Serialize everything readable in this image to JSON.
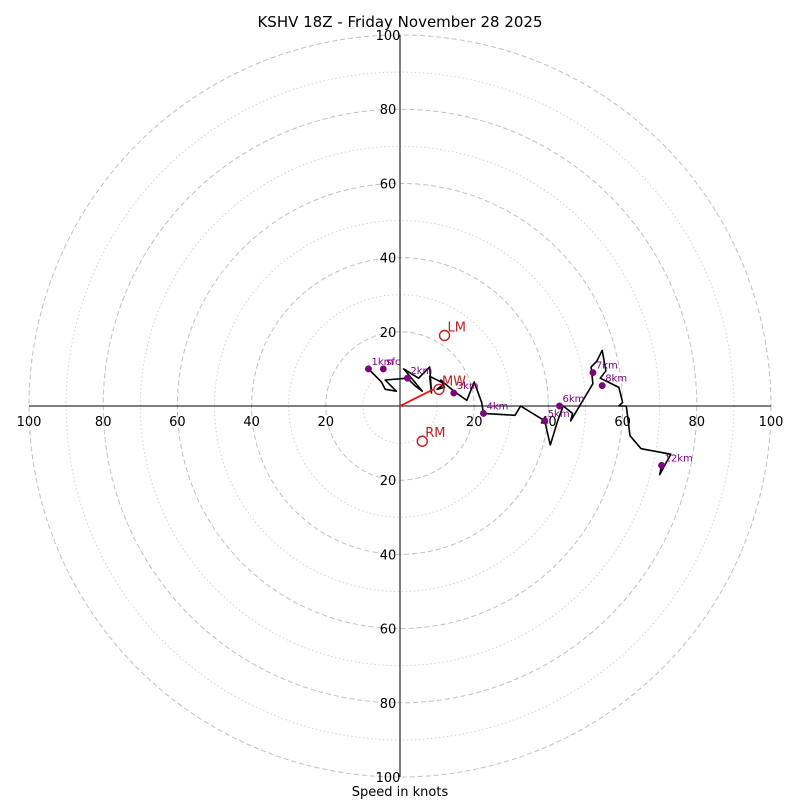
{
  "chart_data": {
    "type": "hodograph",
    "title": "KSHV 18Z - Friday November 28 2025",
    "xlabel": "Speed in knots",
    "units": "knots",
    "max_speed": 100,
    "major_rings": [
      20,
      40,
      60,
      80,
      100
    ],
    "minor_rings": [
      10,
      30,
      50,
      70,
      90
    ],
    "tick_labels": {
      "top": [
        "20",
        "40",
        "60",
        "80",
        "100"
      ],
      "bottom": [
        "20",
        "40",
        "60",
        "80",
        "100"
      ],
      "left": [
        "20",
        "40",
        "60",
        "80",
        "100"
      ],
      "right": [
        "20",
        "40",
        "60",
        "80",
        "100"
      ]
    },
    "trace": [
      [
        -8.5,
        10
      ],
      [
        -5,
        6.5
      ],
      [
        -4,
        4.5
      ],
      [
        -1,
        4
      ],
      [
        -4,
        7
      ],
      [
        2,
        7.5
      ],
      [
        4,
        5.5
      ],
      [
        6,
        4
      ],
      [
        1,
        10
      ],
      [
        5,
        7.5
      ],
      [
        8,
        10.5
      ],
      [
        8.5,
        3.5
      ],
      [
        8,
        8
      ],
      [
        12,
        6
      ],
      [
        10,
        4.5
      ],
      [
        12,
        5
      ],
      [
        11,
        7
      ],
      [
        14.5,
        4
      ],
      [
        18,
        1.5
      ],
      [
        20,
        6.5
      ],
      [
        22,
        1
      ],
      [
        22.5,
        -2
      ],
      [
        31,
        -2.5
      ],
      [
        32.5,
        0
      ],
      [
        39,
        -4
      ],
      [
        40.5,
        -10.5
      ],
      [
        42.5,
        -4
      ],
      [
        44,
        0
      ],
      [
        46.5,
        -2
      ],
      [
        46,
        -4
      ],
      [
        52,
        6
      ],
      [
        51.5,
        10.5
      ],
      [
        53,
        12
      ],
      [
        54.5,
        15
      ],
      [
        55.5,
        9.5
      ],
      [
        54,
        7.5
      ],
      [
        59,
        5
      ],
      [
        60,
        1
      ],
      [
        59,
        0
      ],
      [
        61,
        0
      ],
      [
        62,
        -8
      ],
      [
        65,
        -11.5
      ],
      [
        73,
        -13
      ],
      [
        70,
        -18.5
      ],
      [
        70.5,
        -16
      ]
    ],
    "altitude_points": [
      {
        "label": "1km",
        "u": -8.5,
        "v": 10
      },
      {
        "label": "sfc",
        "u": -4.5,
        "v": 10
      },
      {
        "label": "2km",
        "u": 2,
        "v": 7.5
      },
      {
        "label": "3km",
        "u": 14.5,
        "v": 3.5
      },
      {
        "label": "4km",
        "u": 22.5,
        "v": -2
      },
      {
        "label": "5km",
        "u": 39,
        "v": -4
      },
      {
        "label": "6km",
        "u": 43,
        "v": 0
      },
      {
        "label": "7km",
        "u": 52,
        "v": 9
      },
      {
        "label": "8km",
        "u": 54.5,
        "v": 5.5
      },
      {
        "label": "12km",
        "u": 70.5,
        "v": -16
      }
    ],
    "storm_motion": [
      {
        "label": "LM",
        "u": 12,
        "v": 19
      },
      {
        "label": "MW",
        "u": 10.5,
        "v": 4.5
      },
      {
        "label": "RM",
        "u": 6,
        "v": -9.5
      }
    ],
    "shear_vector": {
      "from": [
        0,
        0
      ],
      "to": [
        9,
        4.5
      ]
    }
  }
}
